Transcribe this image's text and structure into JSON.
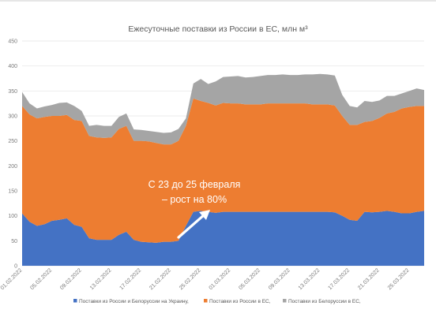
{
  "chart_data": {
    "type": "area",
    "stacked": true,
    "title": "Ежесуточные поставки из России в ЕС, млн м³",
    "xlabel": "",
    "ylabel": "",
    "ylim": [
      0,
      450
    ],
    "y_ticks": [
      0,
      50,
      100,
      150,
      200,
      250,
      300,
      350,
      400,
      450
    ],
    "grid": true,
    "legend_position": "bottom",
    "x": [
      "01.02.2022",
      "02.02.2022",
      "03.02.2022",
      "04.02.2022",
      "05.02.2022",
      "06.02.2022",
      "07.02.2022",
      "08.02.2022",
      "09.02.2022",
      "10.02.2022",
      "11.02.2022",
      "12.02.2022",
      "13.02.2022",
      "14.02.2022",
      "15.02.2022",
      "16.02.2022",
      "17.02.2022",
      "18.02.2022",
      "19.02.2022",
      "20.02.2022",
      "21.02.2022",
      "22.02.2022",
      "23.02.2022",
      "24.02.2022",
      "25.02.2022",
      "26.02.2022",
      "27.02.2022",
      "28.02.2022",
      "01.03.2022",
      "02.03.2022",
      "03.03.2022",
      "04.03.2022",
      "05.03.2022",
      "06.03.2022",
      "07.03.2022",
      "08.03.2022",
      "09.03.2022",
      "10.03.2022",
      "11.03.2022",
      "12.03.2022",
      "13.03.2022",
      "14.03.2022",
      "15.03.2022",
      "16.03.2022",
      "17.03.2022",
      "18.03.2022",
      "19.03.2022",
      "20.03.2022",
      "21.03.2022",
      "22.03.2022",
      "23.03.2022",
      "24.03.2022",
      "25.03.2022",
      "26.03.2022",
      "27.03.2022"
    ],
    "x_tick_labels": [
      "01.02.2022",
      "05.02.2022",
      "09.02.2022",
      "13.02.2022",
      "17.02.2022",
      "21.02.2022",
      "25.02.2022",
      "01.03.2022",
      "05.03.2022",
      "09.03.2022",
      "13.03.2022",
      "17.03.2022",
      "21.03.2022",
      "25.03.2022"
    ],
    "series": [
      {
        "name": "Поставки из России и Белоруссии на Украину,",
        "color": "#4472c4",
        "values": [
          105,
          88,
          80,
          83,
          90,
          92,
          95,
          82,
          78,
          55,
          52,
          52,
          52,
          62,
          68,
          52,
          48,
          47,
          46,
          48,
          48,
          50,
          80,
          108,
          110,
          108,
          106,
          108,
          108,
          108,
          108,
          108,
          108,
          108,
          108,
          108,
          108,
          108,
          108,
          108,
          108,
          108,
          107,
          100,
          92,
          90,
          108,
          107,
          108,
          110,
          108,
          105,
          105,
          108,
          110
        ]
      },
      {
        "name": "Поставки из России в ЕС,",
        "color": "#ed7d31",
        "values": [
          215,
          215,
          215,
          215,
          210,
          208,
          207,
          210,
          212,
          205,
          205,
          204,
          205,
          212,
          212,
          198,
          202,
          202,
          200,
          195,
          195,
          200,
          200,
          227,
          220,
          218,
          215,
          218,
          217,
          217,
          215,
          215,
          215,
          217,
          217,
          217,
          217,
          217,
          217,
          215,
          215,
          215,
          214,
          200,
          190,
          192,
          180,
          183,
          188,
          195,
          200,
          210,
          213,
          212,
          210
        ]
      },
      {
        "name": "Поставки из Белоруссии в ЕС,",
        "color": "#a5a5a5",
        "values": [
          28,
          22,
          20,
          21,
          22,
          26,
          25,
          28,
          20,
          20,
          25,
          24,
          23,
          24,
          25,
          23,
          22,
          21,
          22,
          23,
          24,
          24,
          15,
          30,
          44,
          38,
          48,
          52,
          54,
          55,
          54,
          55,
          57,
          57,
          57,
          58,
          57,
          57,
          58,
          60,
          61,
          60,
          60,
          42,
          38,
          35,
          42,
          38,
          35,
          35,
          32,
          30,
          32,
          35,
          32
        ]
      }
    ],
    "annotation": {
      "line1": "С 23 до 25 февраля",
      "line2": "– рост на 80%"
    }
  }
}
